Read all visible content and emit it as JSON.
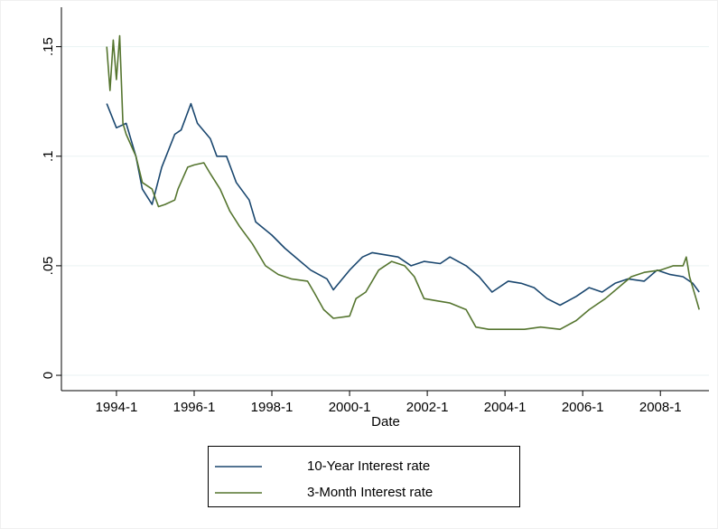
{
  "chart_data": {
    "type": "line",
    "xlabel": "Date",
    "xlim": [
      "1992-8",
      "2009-4"
    ],
    "xticks": [
      "1994-1",
      "1996-1",
      "1998-1",
      "2000-1",
      "2002-1",
      "2004-1",
      "2006-1",
      "2008-1"
    ],
    "ylim": [
      -0.007,
      0.168
    ],
    "yticks": [
      0,
      {
        "value": 0.05,
        "label": ".05"
      },
      {
        "value": 0.1,
        "label": ".1"
      },
      {
        "value": 0.15,
        "label": ".15"
      }
    ],
    "grid": true,
    "legend": "bottom",
    "series": [
      {
        "name": "10-Year Interest rate",
        "color": "#1a476f",
        "x": [
          "1993-10",
          "1994-1",
          "1994-4",
          "1994-7",
          "1994-9",
          "1994-12",
          "1995-3",
          "1995-7",
          "1995-9",
          "1995-12",
          "1996-2",
          "1996-6",
          "1996-8",
          "1996-11",
          "1997-2",
          "1997-6",
          "1997-8",
          "1998-1",
          "1998-5",
          "1998-9",
          "1999-1",
          "1999-6",
          "1999-8",
          "2000-1",
          "2000-5",
          "2000-8",
          "2000-12",
          "2001-4",
          "2001-8",
          "2001-12",
          "2002-5",
          "2002-8",
          "2003-1",
          "2003-5",
          "2003-9",
          "2004-2",
          "2004-6",
          "2004-10",
          "2005-2",
          "2005-6",
          "2005-11",
          "2006-3",
          "2006-7",
          "2006-11",
          "2007-3",
          "2007-8",
          "2007-12",
          "2008-4",
          "2008-8",
          "2008-11",
          "2009-1"
        ],
        "values": [
          0.124,
          0.113,
          0.115,
          0.1,
          0.085,
          0.078,
          0.095,
          0.11,
          0.112,
          0.124,
          0.115,
          0.108,
          0.1,
          0.1,
          0.088,
          0.08,
          0.07,
          0.064,
          0.058,
          0.053,
          0.048,
          0.044,
          0.039,
          0.048,
          0.054,
          0.056,
          0.055,
          0.054,
          0.05,
          0.052,
          0.051,
          0.054,
          0.05,
          0.045,
          0.038,
          0.043,
          0.042,
          0.04,
          0.035,
          0.032,
          0.036,
          0.04,
          0.038,
          0.042,
          0.044,
          0.043,
          0.048,
          0.046,
          0.045,
          0.042,
          0.038
        ]
      },
      {
        "name": "3-Month Interest rate",
        "color": "#55752f",
        "x": [
          "1993-10",
          "1993-11",
          "1993-12",
          "1994-1",
          "1994-2",
          "1994-3",
          "1994-4",
          "1994-7",
          "1994-9",
          "1994-12",
          "1995-2",
          "1995-4",
          "1995-7",
          "1995-8",
          "1995-11",
          "1996-1",
          "1996-4",
          "1996-6",
          "1996-9",
          "1996-12",
          "1997-3",
          "1997-7",
          "1997-11",
          "1998-3",
          "1998-7",
          "1998-12",
          "1999-2",
          "1999-5",
          "1999-8",
          "2000-1",
          "2000-3",
          "2000-6",
          "2000-10",
          "2001-2",
          "2001-6",
          "2001-9",
          "2001-12",
          "2002-4",
          "2002-8",
          "2003-1",
          "2003-4",
          "2003-8",
          "2004-1",
          "2004-7",
          "2004-12",
          "2005-6",
          "2005-11",
          "2006-3",
          "2006-8",
          "2006-12",
          "2007-4",
          "2007-8",
          "2008-1",
          "2008-5",
          "2008-8",
          "2008-9",
          "2008-10",
          "2008-12",
          "2009-1"
        ],
        "values": [
          0.15,
          0.13,
          0.153,
          0.135,
          0.155,
          0.115,
          0.11,
          0.1,
          0.088,
          0.085,
          0.077,
          0.078,
          0.08,
          0.085,
          0.095,
          0.096,
          0.097,
          0.092,
          0.085,
          0.075,
          0.068,
          0.06,
          0.05,
          0.046,
          0.044,
          0.043,
          0.038,
          0.03,
          0.026,
          0.027,
          0.035,
          0.038,
          0.048,
          0.052,
          0.05,
          0.045,
          0.035,
          0.034,
          0.033,
          0.03,
          0.022,
          0.021,
          0.021,
          0.021,
          0.022,
          0.021,
          0.025,
          0.03,
          0.035,
          0.04,
          0.045,
          0.047,
          0.048,
          0.05,
          0.05,
          0.054,
          0.045,
          0.035,
          0.03
        ]
      }
    ]
  }
}
